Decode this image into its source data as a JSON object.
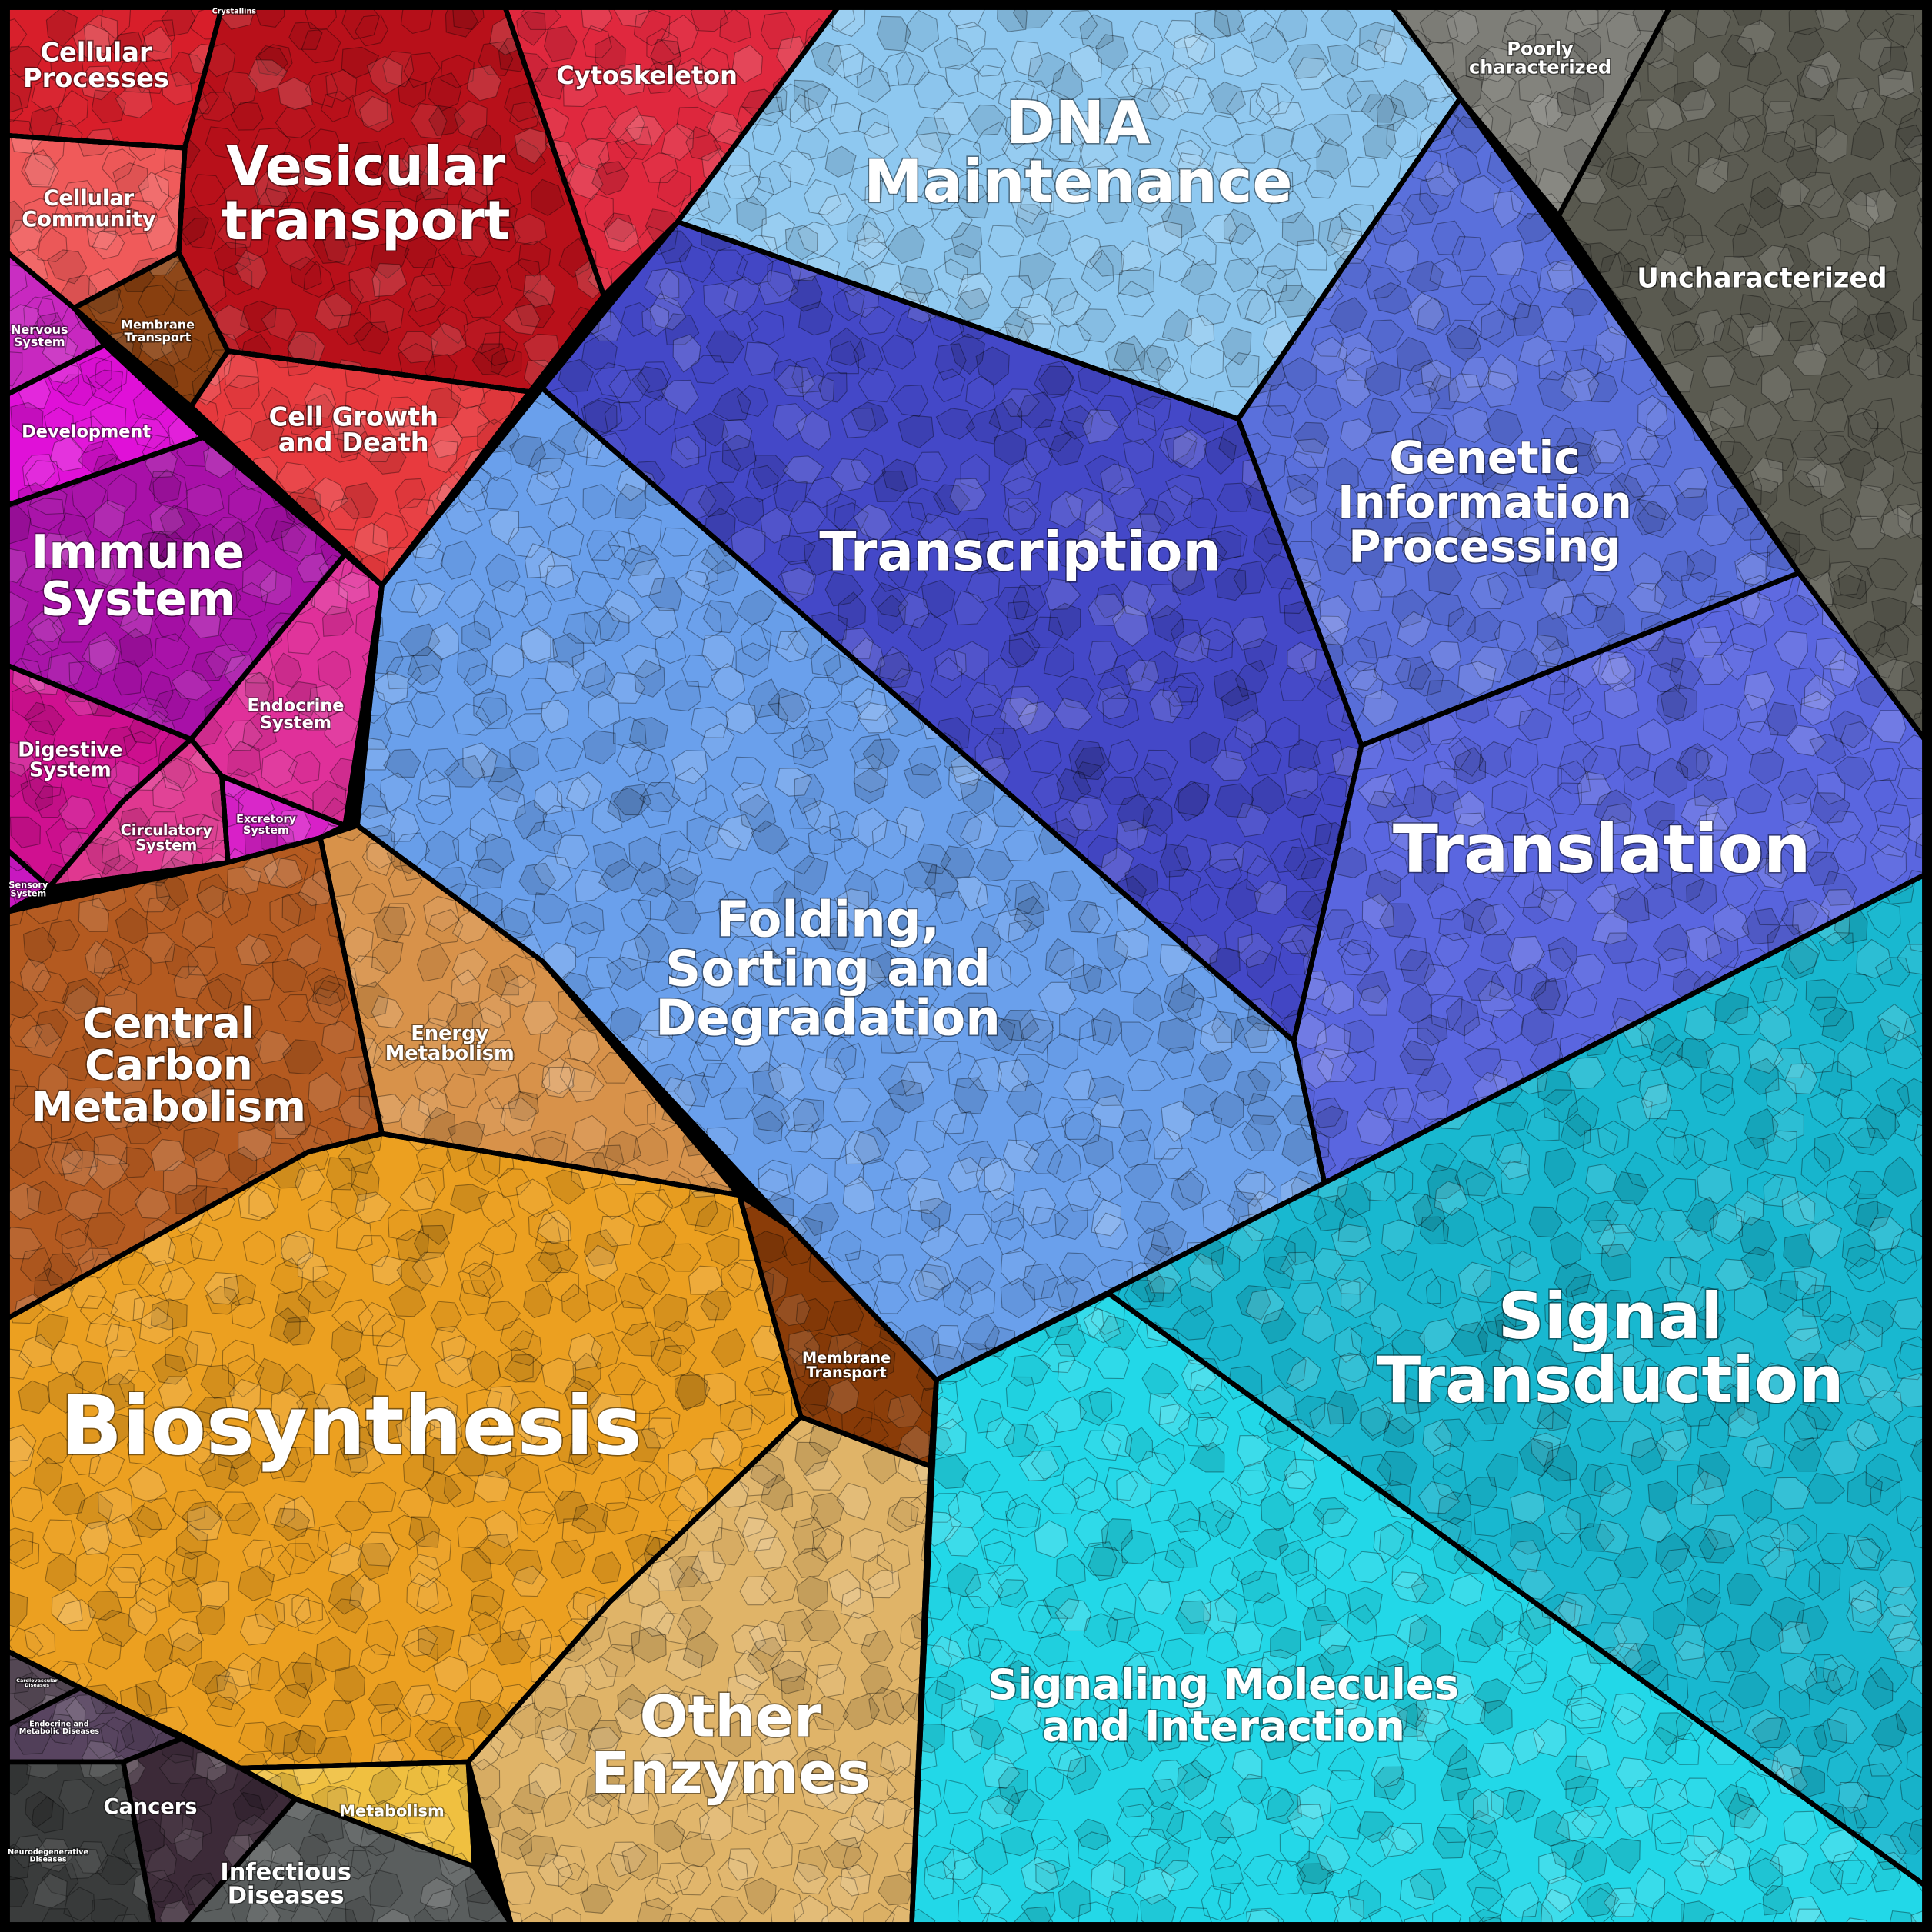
{
  "colors": {
    "cellular_processes": "#c8141e",
    "organismal_systems": "#c010c0",
    "metabolism": "#e89a20",
    "genetic_information": "#4a50d0",
    "environmental": "#18c0d8",
    "unclassified": "#5a5a50",
    "human_diseases": "#3a3040",
    "border": "#000000"
  },
  "regions": {
    "cellular_processes": "Cellular Processes",
    "crystallins": "Crystallins",
    "vesicular_transport": "Vesicular transport",
    "cytoskeleton": "Cytoskeleton",
    "cellular_community": "Cellular Community",
    "membrane_transport_1": "Membrane Transport",
    "cell_growth": "Cell Growth and Death",
    "nervous_system": "Nervous System",
    "development": "Development",
    "immune_system": "Immune System",
    "endocrine_system": "Endocrine System",
    "digestive_system": "Digestive System",
    "circulatory_system": "Circulatory System",
    "excretory_system": "Excretory System",
    "sensory_system": "Sensory System",
    "central_carbon": "Central Carbon Metabolism",
    "energy_metabolism": "Energy Metabolism",
    "biosynthesis": "Biosynthesis",
    "membrane_transport_2": "Membrane Transport",
    "other_enzymes": "Other Enzymes",
    "metabolism": "Metabolism",
    "cardiovascular": "Cardiovascular Diseases",
    "endocrine_metabolic": "Endocrine and Metabolic Diseases",
    "cancers": "Cancers",
    "neurodegenerative": "Neurodegenerative Diseases",
    "infectious": "Infectious Diseases",
    "dna_maintenance": "DNA Maintenance",
    "transcription": "Transcription",
    "genetic_info": "Genetic Information Processing",
    "folding": "Folding, Sorting and Degradation",
    "translation": "Translation",
    "signal_transduction": "Signal Transduction",
    "signaling_molecules": "Signaling Molecules and Interaction",
    "poorly_characterized": "Poorly characterized",
    "uncharacterized": "Uncharacterized"
  }
}
